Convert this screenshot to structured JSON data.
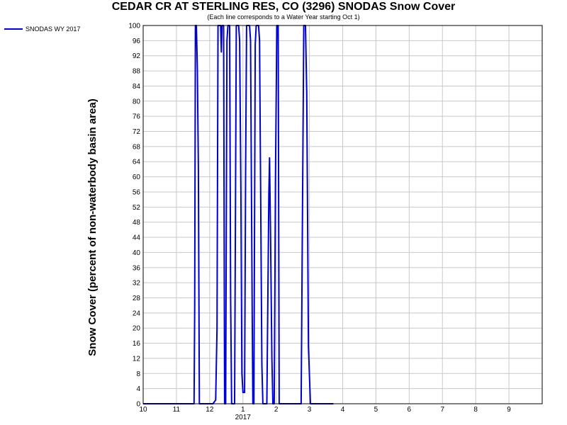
{
  "chart_data": {
    "type": "line",
    "title": "CEDAR CR AT STERLING RES, CO (3296) SNODAS Snow Cover",
    "subtitle": "(Each line corresponds to a Water Year starting Oct 1)",
    "ylabel": "Snow Cover (percent of non-waterbody basin area)",
    "xlabel": "",
    "ylim": [
      0,
      100
    ],
    "xlim": [
      10,
      10.98
    ],
    "grid": true,
    "legend_position": "top-left",
    "x_ticks": [
      {
        "x": 10,
        "label": "10"
      },
      {
        "x": 11,
        "label": "11"
      },
      {
        "x": 12,
        "label": "12"
      },
      {
        "x": 13,
        "label": "1"
      },
      {
        "x": 14,
        "label": "2"
      },
      {
        "x": 15,
        "label": "3"
      },
      {
        "x": 16,
        "label": "4"
      },
      {
        "x": 17,
        "label": "5"
      },
      {
        "x": 18,
        "label": "6"
      },
      {
        "x": 19,
        "label": "7"
      },
      {
        "x": 20,
        "label": "8"
      },
      {
        "x": 21,
        "label": "9"
      }
    ],
    "x_year_label": {
      "x": 13,
      "label": "2017"
    },
    "y_ticks": [
      0,
      4,
      8,
      12,
      16,
      20,
      24,
      28,
      32,
      36,
      40,
      44,
      48,
      52,
      56,
      60,
      64,
      68,
      72,
      76,
      80,
      84,
      88,
      92,
      96,
      100
    ],
    "series": [
      {
        "name": "SNODAS WY 2017",
        "color": "#0000cc",
        "points": [
          [
            10.0,
            0
          ],
          [
            11.53,
            0
          ],
          [
            11.55,
            25
          ],
          [
            11.57,
            100
          ],
          [
            11.6,
            100
          ],
          [
            11.63,
            88
          ],
          [
            11.66,
            62
          ],
          [
            11.69,
            0
          ],
          [
            12.1,
            0
          ],
          [
            12.18,
            1
          ],
          [
            12.22,
            20
          ],
          [
            12.25,
            100
          ],
          [
            12.33,
            100
          ],
          [
            12.35,
            93
          ],
          [
            12.37,
            100
          ],
          [
            12.42,
            100
          ],
          [
            12.45,
            0
          ],
          [
            12.48,
            0
          ],
          [
            12.52,
            96
          ],
          [
            12.55,
            100
          ],
          [
            12.6,
            100
          ],
          [
            12.63,
            28
          ],
          [
            12.66,
            0
          ],
          [
            12.75,
            0
          ],
          [
            12.8,
            100
          ],
          [
            12.87,
            100
          ],
          [
            12.9,
            96
          ],
          [
            12.94,
            56
          ],
          [
            12.97,
            8
          ],
          [
            13.0,
            3
          ],
          [
            13.05,
            3
          ],
          [
            13.08,
            60
          ],
          [
            13.11,
            100
          ],
          [
            13.2,
            100
          ],
          [
            13.23,
            96
          ],
          [
            13.28,
            22
          ],
          [
            13.3,
            0
          ],
          [
            13.33,
            0
          ],
          [
            13.37,
            95
          ],
          [
            13.4,
            100
          ],
          [
            13.47,
            100
          ],
          [
            13.5,
            96
          ],
          [
            13.53,
            60
          ],
          [
            13.57,
            10
          ],
          [
            13.6,
            0
          ],
          [
            13.72,
            0
          ],
          [
            13.78,
            55
          ],
          [
            13.8,
            65
          ],
          [
            13.83,
            45
          ],
          [
            13.87,
            12
          ],
          [
            13.9,
            0
          ],
          [
            13.94,
            0
          ],
          [
            13.98,
            60
          ],
          [
            14.02,
            100
          ],
          [
            14.06,
            100
          ],
          [
            14.09,
            0
          ],
          [
            14.75,
            0
          ],
          [
            14.8,
            62
          ],
          [
            14.83,
            100
          ],
          [
            14.88,
            100
          ],
          [
            14.92,
            82
          ],
          [
            14.97,
            15
          ],
          [
            15.03,
            0
          ],
          [
            15.72,
            0
          ]
        ]
      }
    ]
  }
}
